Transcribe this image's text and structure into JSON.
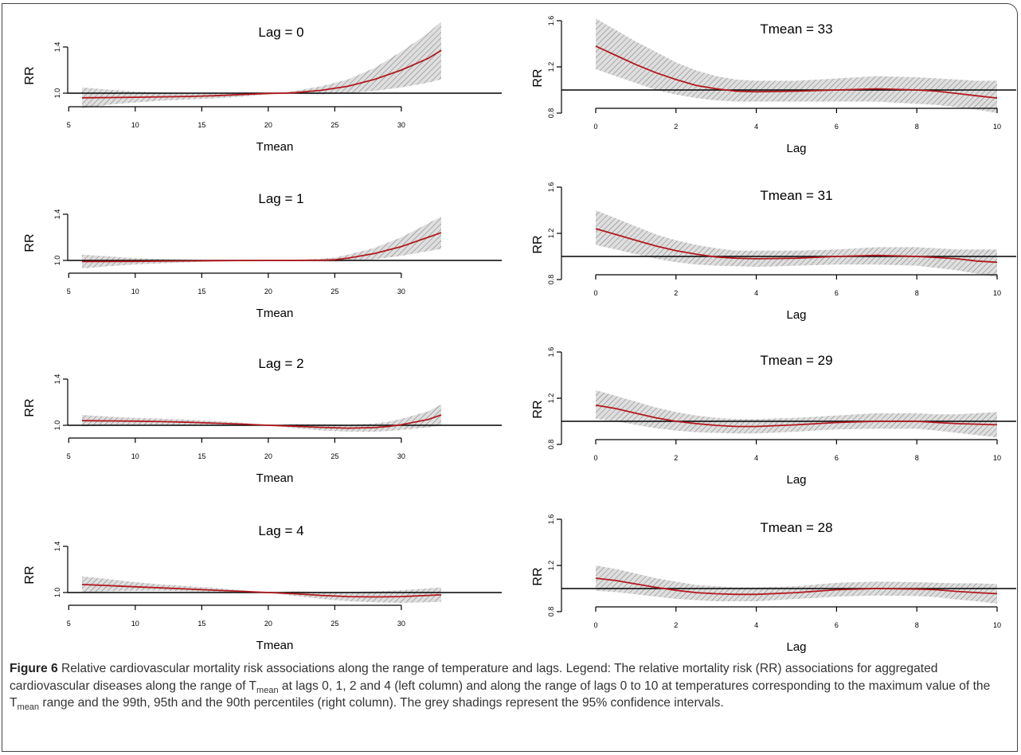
{
  "chart_data": [
    {
      "type": "line",
      "title": "Lag = 0",
      "xlabel": "Tmean",
      "ylabel": "RR",
      "xlim": [
        5,
        33
      ],
      "ylim": [
        0.8,
        1.6
      ],
      "xticks": [
        5,
        10,
        15,
        20,
        25,
        30
      ],
      "yticks": [
        1.0,
        1.4
      ],
      "ytick_labels": [
        "1.0",
        "1.4"
      ],
      "reference_line": 1.0,
      "confidence_band": "95% CI",
      "series": [
        {
          "x": [
            6,
            8,
            10,
            12,
            14,
            16,
            18,
            20,
            21,
            22,
            24,
            26,
            28,
            30,
            32,
            33
          ],
          "y": [
            0.96,
            0.962,
            0.965,
            0.968,
            0.972,
            0.978,
            0.988,
            0.998,
            1.0,
            1.005,
            1.025,
            1.06,
            1.12,
            1.2,
            1.3,
            1.37
          ],
          "lower": [
            0.87,
            0.9,
            0.92,
            0.935,
            0.945,
            0.955,
            0.97,
            0.99,
            1.0,
            0.995,
            0.99,
            1.0,
            1.02,
            1.05,
            1.09,
            1.12
          ],
          "upper": [
            1.05,
            1.03,
            1.015,
            1.005,
            1.0,
            1.0,
            1.005,
            1.006,
            1.0,
            1.02,
            1.06,
            1.12,
            1.22,
            1.36,
            1.52,
            1.62
          ]
        }
      ]
    },
    {
      "type": "line",
      "title": "Tmean = 33",
      "xlabel": "Lag",
      "ylabel": "RR",
      "xlim": [
        0,
        10
      ],
      "ylim": [
        0.8,
        1.6
      ],
      "xticks": [
        0,
        2,
        4,
        6,
        8,
        10
      ],
      "yticks": [
        0.8,
        1.2,
        1.6
      ],
      "ytick_labels": [
        "0.8",
        "1.2",
        "1.6"
      ],
      "reference_line": 1.0,
      "confidence_band": "95% CI",
      "series": [
        {
          "x": [
            0,
            0.5,
            1,
            1.5,
            2,
            2.5,
            3,
            3.5,
            4,
            5,
            6,
            7,
            8,
            8.5,
            9,
            9.5,
            10
          ],
          "y": [
            1.38,
            1.3,
            1.22,
            1.15,
            1.09,
            1.04,
            1.01,
            0.99,
            0.985,
            0.99,
            1.0,
            1.01,
            1.0,
            0.99,
            0.97,
            0.95,
            0.93
          ],
          "lower": [
            1.18,
            1.12,
            1.06,
            1.0,
            0.96,
            0.93,
            0.91,
            0.9,
            0.9,
            0.9,
            0.9,
            0.9,
            0.88,
            0.87,
            0.85,
            0.83,
            0.8
          ],
          "upper": [
            1.62,
            1.52,
            1.42,
            1.33,
            1.24,
            1.17,
            1.12,
            1.09,
            1.08,
            1.08,
            1.1,
            1.12,
            1.11,
            1.1,
            1.09,
            1.08,
            1.08
          ]
        }
      ]
    },
    {
      "type": "line",
      "title": "Lag = 1",
      "xlabel": "Tmean",
      "ylabel": "RR",
      "xlim": [
        5,
        33
      ],
      "ylim": [
        0.8,
        1.6
      ],
      "xticks": [
        5,
        10,
        15,
        20,
        25,
        30
      ],
      "yticks": [
        1.0,
        1.4
      ],
      "ytick_labels": [
        "1.0",
        "1.4"
      ],
      "reference_line": 1.0,
      "confidence_band": "95% CI",
      "series": [
        {
          "x": [
            6,
            8,
            10,
            12,
            14,
            16,
            18,
            20,
            22,
            24,
            25,
            26,
            28,
            30,
            32,
            33
          ],
          "y": [
            0.99,
            0.991,
            0.992,
            0.994,
            0.996,
            0.998,
            0.999,
            1.0,
            1.0,
            1.002,
            1.006,
            1.02,
            1.06,
            1.12,
            1.2,
            1.24
          ],
          "lower": [
            0.93,
            0.95,
            0.965,
            0.975,
            0.985,
            0.99,
            0.995,
            1.0,
            0.995,
            0.99,
            0.99,
            0.995,
            1.01,
            1.04,
            1.08,
            1.1
          ],
          "upper": [
            1.05,
            1.035,
            1.02,
            1.012,
            1.007,
            1.005,
            1.003,
            1.0,
            1.005,
            1.016,
            1.025,
            1.05,
            1.11,
            1.2,
            1.32,
            1.38
          ]
        }
      ]
    },
    {
      "type": "line",
      "title": "Tmean = 31",
      "xlabel": "Lag",
      "ylabel": "RR",
      "xlim": [
        0,
        10
      ],
      "ylim": [
        0.8,
        1.6
      ],
      "xticks": [
        0,
        2,
        4,
        6,
        8,
        10
      ],
      "yticks": [
        0.8,
        1.2,
        1.6
      ],
      "ytick_labels": [
        "0.8",
        "1.2",
        "1.6"
      ],
      "reference_line": 1.0,
      "confidence_band": "95% CI",
      "series": [
        {
          "x": [
            0,
            0.5,
            1,
            1.5,
            2,
            2.5,
            3,
            3.5,
            4,
            5,
            6,
            7,
            8,
            8.5,
            9,
            9.5,
            10
          ],
          "y": [
            1.24,
            1.19,
            1.14,
            1.09,
            1.05,
            1.02,
            0.995,
            0.985,
            0.98,
            0.985,
            1.0,
            1.01,
            1.0,
            0.99,
            0.98,
            0.96,
            0.95
          ],
          "lower": [
            1.1,
            1.06,
            1.02,
            0.98,
            0.95,
            0.93,
            0.92,
            0.915,
            0.91,
            0.92,
            0.93,
            0.93,
            0.92,
            0.9,
            0.88,
            0.85,
            0.82
          ],
          "upper": [
            1.4,
            1.33,
            1.26,
            1.19,
            1.14,
            1.1,
            1.07,
            1.05,
            1.05,
            1.05,
            1.06,
            1.08,
            1.08,
            1.07,
            1.06,
            1.06,
            1.06
          ]
        }
      ]
    },
    {
      "type": "line",
      "title": "Lag = 2",
      "xlabel": "Tmean",
      "ylabel": "RR",
      "xlim": [
        5,
        33
      ],
      "ylim": [
        0.8,
        1.6
      ],
      "xticks": [
        5,
        10,
        15,
        20,
        25,
        30
      ],
      "yticks": [
        1.0,
        1.4
      ],
      "ytick_labels": [
        "1.0",
        "1.4"
      ],
      "reference_line": 1.0,
      "confidence_band": "95% CI",
      "series": [
        {
          "x": [
            6,
            8,
            10,
            12,
            14,
            16,
            18,
            20,
            22,
            24,
            26,
            28,
            29,
            30,
            32,
            33
          ],
          "y": [
            1.04,
            1.038,
            1.036,
            1.032,
            1.026,
            1.018,
            1.01,
            1.0,
            0.992,
            0.982,
            0.975,
            0.98,
            0.99,
            1.005,
            1.05,
            1.09
          ],
          "lower": [
            0.99,
            1.0,
            1.005,
            1.005,
            1.003,
            1.0,
            0.998,
            1.0,
            0.975,
            0.955,
            0.945,
            0.945,
            0.95,
            0.96,
            0.98,
            1.0
          ],
          "upper": [
            1.09,
            1.075,
            1.065,
            1.058,
            1.048,
            1.036,
            1.022,
            1.0,
            1.01,
            1.01,
            1.005,
            1.015,
            1.03,
            1.055,
            1.12,
            1.18
          ]
        }
      ]
    },
    {
      "type": "line",
      "title": "Tmean = 29",
      "xlabel": "Lag",
      "ylabel": "RR",
      "xlim": [
        0,
        10
      ],
      "ylim": [
        0.8,
        1.6
      ],
      "xticks": [
        0,
        2,
        4,
        6,
        8,
        10
      ],
      "yticks": [
        0.8,
        1.2,
        1.6
      ],
      "ytick_labels": [
        "0.8",
        "1.2",
        "1.6"
      ],
      "reference_line": 1.0,
      "confidence_band": "95% CI",
      "series": [
        {
          "x": [
            0,
            0.5,
            1,
            1.5,
            2,
            2.5,
            3,
            3.5,
            4,
            5,
            6,
            7,
            8,
            8.5,
            9,
            9.5,
            10
          ],
          "y": [
            1.14,
            1.11,
            1.07,
            1.03,
            1.0,
            0.98,
            0.965,
            0.955,
            0.955,
            0.97,
            0.99,
            1.0,
            1.0,
            0.99,
            0.98,
            0.975,
            0.97
          ],
          "lower": [
            1.02,
            1.0,
            0.97,
            0.94,
            0.92,
            0.905,
            0.9,
            0.895,
            0.895,
            0.91,
            0.93,
            0.935,
            0.935,
            0.92,
            0.9,
            0.88,
            0.86
          ],
          "upper": [
            1.27,
            1.22,
            1.17,
            1.12,
            1.08,
            1.05,
            1.03,
            1.02,
            1.02,
            1.03,
            1.05,
            1.07,
            1.07,
            1.06,
            1.06,
            1.07,
            1.08
          ]
        }
      ]
    },
    {
      "type": "line",
      "title": "Lag = 4",
      "xlabel": "Tmean",
      "ylabel": "RR",
      "xlim": [
        5,
        33
      ],
      "ylim": [
        0.8,
        1.6
      ],
      "xticks": [
        5,
        10,
        15,
        20,
        25,
        30
      ],
      "yticks": [
        1.0,
        1.4
      ],
      "ytick_labels": [
        "1.0",
        "1.4"
      ],
      "reference_line": 1.0,
      "confidence_band": "95% CI",
      "series": [
        {
          "x": [
            6,
            8,
            10,
            12,
            14,
            16,
            18,
            20,
            22,
            24,
            26,
            28,
            30,
            32,
            33
          ],
          "y": [
            1.07,
            1.06,
            1.05,
            1.04,
            1.03,
            1.02,
            1.01,
            1.0,
            0.99,
            0.975,
            0.965,
            0.962,
            0.965,
            0.975,
            0.98
          ],
          "lower": [
            1.0,
            1.01,
            1.015,
            1.015,
            1.01,
            1.006,
            1.0,
            1.0,
            0.97,
            0.945,
            0.925,
            0.915,
            0.91,
            0.915,
            0.92
          ],
          "upper": [
            1.14,
            1.115,
            1.09,
            1.07,
            1.055,
            1.04,
            1.02,
            1.0,
            1.01,
            1.005,
            1.005,
            1.01,
            1.02,
            1.035,
            1.045
          ]
        }
      ]
    },
    {
      "type": "line",
      "title": "Tmean = 28",
      "xlabel": "Lag",
      "ylabel": "RR",
      "xlim": [
        0,
        10
      ],
      "ylim": [
        0.8,
        1.6
      ],
      "xticks": [
        0,
        2,
        4,
        6,
        8,
        10
      ],
      "yticks": [
        0.8,
        1.2,
        1.6
      ],
      "ytick_labels": [
        "0.8",
        "1.2",
        "1.6"
      ],
      "reference_line": 1.0,
      "confidence_band": "95% CI",
      "series": [
        {
          "x": [
            0,
            0.5,
            1,
            1.5,
            2,
            2.5,
            3,
            3.5,
            4,
            5,
            6,
            7,
            8,
            8.5,
            9,
            9.5,
            10
          ],
          "y": [
            1.09,
            1.07,
            1.04,
            1.01,
            0.985,
            0.965,
            0.955,
            0.95,
            0.95,
            0.965,
            0.99,
            1.0,
            0.995,
            0.99,
            0.975,
            0.965,
            0.955
          ],
          "lower": [
            0.98,
            0.97,
            0.95,
            0.93,
            0.91,
            0.9,
            0.89,
            0.89,
            0.89,
            0.91,
            0.93,
            0.94,
            0.935,
            0.925,
            0.905,
            0.89,
            0.87
          ],
          "upper": [
            1.2,
            1.17,
            1.13,
            1.09,
            1.06,
            1.03,
            1.02,
            1.01,
            1.01,
            1.02,
            1.05,
            1.06,
            1.055,
            1.05,
            1.045,
            1.045,
            1.04
          ]
        }
      ]
    }
  ],
  "colors": {
    "line": "#b3191f",
    "band": "#d9d9d9",
    "hatch": "#6e6e6e",
    "axis": "#000000"
  },
  "caption": {
    "label": "Figure 6",
    "text_1": " Relative cardiovascular mortality risk associations along the range of temperature and lags. Legend: The relative mortality risk (RR) associations for aggregated cardiovascular diseases along the range of T",
    "sub_1": "mean",
    "text_2": " at lags 0, 1, 2 and 4 (left column) and along the range of lags 0 to 10 at temperatures corresponding to the maximum value of the T",
    "sub_2": "mean",
    "text_3": " range and the 99th, 95th and the 90th percentiles (right column). The grey shadings represent the 95% confidence intervals."
  }
}
